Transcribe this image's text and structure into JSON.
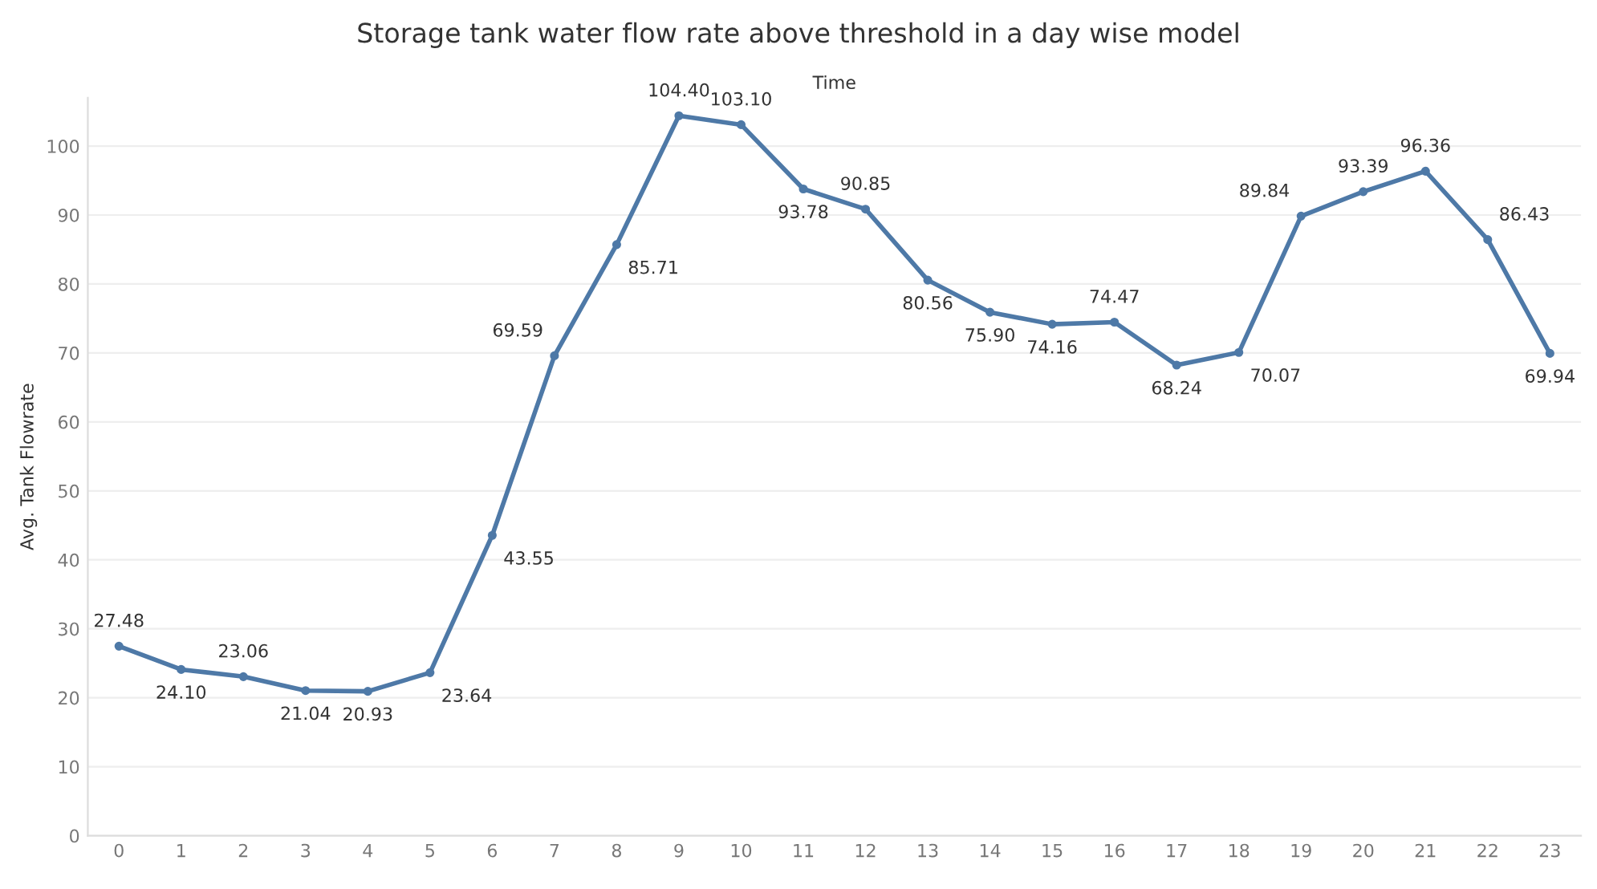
{
  "chart_data": {
    "type": "line",
    "title": "Storage tank water flow rate above threshold in a day wise model",
    "xlabel": "Time",
    "ylabel": "Avg. Tank Flowrate",
    "categories": [
      "0",
      "1",
      "2",
      "3",
      "4",
      "5",
      "6",
      "7",
      "8",
      "9",
      "10",
      "11",
      "12",
      "13",
      "14",
      "15",
      "16",
      "17",
      "18",
      "19",
      "20",
      "21",
      "22",
      "23"
    ],
    "series": [
      {
        "color": "#4e79a7",
        "values": [
          27.48,
          24.1,
          23.06,
          21.04,
          20.93,
          23.64,
          43.55,
          69.59,
          85.71,
          104.4,
          103.1,
          93.78,
          90.85,
          80.56,
          75.9,
          74.16,
          74.47,
          68.24,
          70.07,
          89.84,
          93.39,
          96.36,
          86.43,
          69.94
        ],
        "value_labels": [
          "27.48",
          "24.10",
          "23.06",
          "21.04",
          "20.93",
          "23.64",
          "43.55",
          "69.59",
          "85.71",
          "104.40",
          "103.10",
          "93.78",
          "90.85",
          "80.56",
          "75.90",
          "74.16",
          "74.47",
          "68.24",
          "70.07",
          "89.84",
          "93.39",
          "96.36",
          "86.43",
          "69.94"
        ]
      }
    ],
    "ylim": [
      0,
      107
    ],
    "yticks": [
      0,
      10,
      20,
      30,
      40,
      50,
      60,
      70,
      80,
      90,
      100
    ],
    "grid": "y",
    "marker": "circle",
    "line_style": "solid"
  }
}
